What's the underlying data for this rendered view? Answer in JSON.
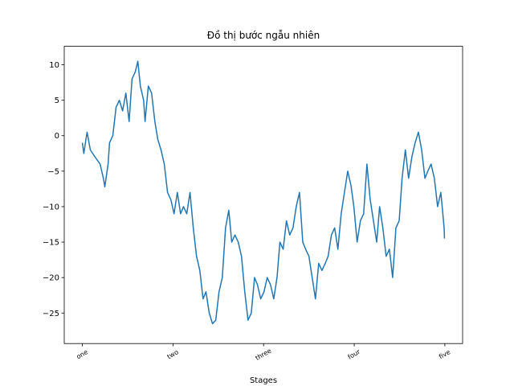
{
  "chart_data": {
    "type": "line",
    "title": "Đồ thị bước ngẫu nhiên",
    "x_label": "Stages",
    "x": [
      0,
      4,
      13,
      22,
      35,
      49,
      58,
      62,
      71,
      75,
      84,
      93,
      102,
      111,
      120,
      129,
      137,
      146,
      153,
      160,
      169,
      173,
      182,
      191,
      200,
      208,
      217,
      226,
      235,
      244,
      253,
      262,
      271,
      279,
      288,
      297,
      306,
      315,
      324,
      333,
      341,
      350,
      359,
      368,
      377,
      386,
      395,
      404,
      412,
      421,
      430,
      439,
      448,
      457,
      466,
      475,
      483,
      492,
      501,
      510,
      519,
      528,
      537,
      545,
      554,
      563,
      572,
      581,
      590,
      599,
      608,
      616,
      625,
      634,
      643,
      652,
      661,
      670,
      678,
      687,
      696,
      705,
      714,
      723,
      732,
      741,
      749,
      758,
      767,
      776,
      785,
      794,
      803,
      812,
      820,
      829,
      838,
      847,
      856,
      865,
      874,
      882,
      891,
      900,
      909,
      918,
      927,
      936,
      945,
      953,
      962,
      971,
      980,
      989,
      998,
      999
    ],
    "series": [
      {
        "color": "#1f77b4",
        "values": [
          -1,
          -2.5,
          0.5,
          -2,
          -3,
          -4,
          -6,
          -7.2,
          -4,
          -1,
          0,
          4,
          5,
          3.5,
          6,
          2,
          8,
          9,
          10.5,
          7,
          5,
          2,
          7,
          6,
          2,
          -0.5,
          -2,
          -4,
          -8,
          -9,
          -11,
          -8,
          -11,
          -10,
          -11,
          -8,
          -13,
          -17,
          -19,
          -23,
          -22,
          -25,
          -26.5,
          -26,
          -22,
          -20,
          -13,
          -10.5,
          -15,
          -14,
          -15,
          -17,
          -22,
          -26,
          -25,
          -20,
          -21,
          -23,
          -22,
          -20,
          -21,
          -23,
          -20,
          -15,
          -16,
          -12,
          -14,
          -13,
          -10,
          -8,
          -15,
          -16,
          -17,
          -20,
          -23,
          -18,
          -19,
          -18,
          -17,
          -14,
          -13,
          -16,
          -11,
          -8,
          -5,
          -7,
          -10,
          -15,
          -12,
          -11,
          -4,
          -9,
          -12,
          -15,
          -10,
          -13,
          -17,
          -16,
          -20,
          -13,
          -12,
          -6,
          -2,
          -6,
          -3,
          -1,
          0.5,
          -2,
          -6,
          -5,
          -4,
          -6,
          -10,
          -8,
          -13,
          -14.5
        ]
      }
    ],
    "xlim": [
      -49.95,
      1048.95
    ],
    "ylim": [
      -29.3,
      12.6
    ],
    "xticks": [
      {
        "value": 0,
        "label": "one"
      },
      {
        "value": 250,
        "label": "two"
      },
      {
        "value": 500,
        "label": "three"
      },
      {
        "value": 750,
        "label": "four"
      },
      {
        "value": 1000,
        "label": "five"
      }
    ],
    "yticks": [
      {
        "value": -25,
        "label": "−25"
      },
      {
        "value": -20,
        "label": "−20"
      },
      {
        "value": -15,
        "label": "−15"
      },
      {
        "value": -10,
        "label": "−10"
      },
      {
        "value": -5,
        "label": "−5"
      },
      0,
      5,
      10
    ]
  }
}
